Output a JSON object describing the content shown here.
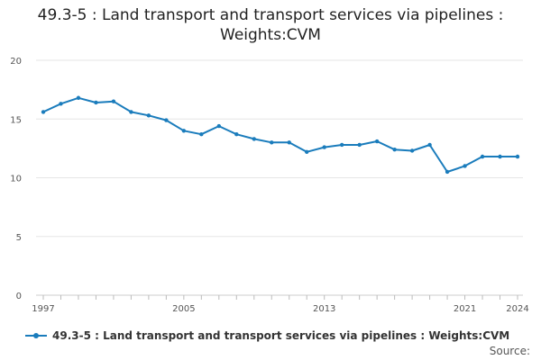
{
  "chart_data": {
    "type": "line",
    "title": "49.3-5 : Land transport and transport services via pipelines : Weights:CVM",
    "x": [
      1997,
      1998,
      1999,
      2000,
      2001,
      2002,
      2003,
      2004,
      2005,
      2006,
      2007,
      2008,
      2009,
      2010,
      2011,
      2012,
      2013,
      2014,
      2015,
      2016,
      2017,
      2018,
      2019,
      2020,
      2021,
      2022,
      2023,
      2024
    ],
    "series": [
      {
        "name": "49.3-5 : Land transport and transport services via pipelines : Weights:CVM",
        "values": [
          15.6,
          16.3,
          16.8,
          16.4,
          16.5,
          15.6,
          15.3,
          14.9,
          14.0,
          13.7,
          14.4,
          13.7,
          13.3,
          13.0,
          13.0,
          12.2,
          12.6,
          12.8,
          12.8,
          13.1,
          12.4,
          12.3,
          12.8,
          10.5,
          11.0,
          11.8,
          11.8,
          11.8
        ],
        "color": "#1a7cbc"
      }
    ],
    "x_tick_labels": [
      "1997",
      "2005",
      "2013",
      "2021",
      "2024"
    ],
    "x_ticks": [
      1997,
      2005,
      2013,
      2021,
      2024
    ],
    "y_ticks": [
      0,
      5,
      10,
      15,
      20
    ],
    "y_tick_labels": [
      "0",
      "5",
      "10",
      "15",
      "20"
    ],
    "ylim": [
      0,
      20
    ],
    "xlim": [
      1997,
      2024
    ],
    "grid": true,
    "legend": "bottom",
    "source": "Source:"
  }
}
